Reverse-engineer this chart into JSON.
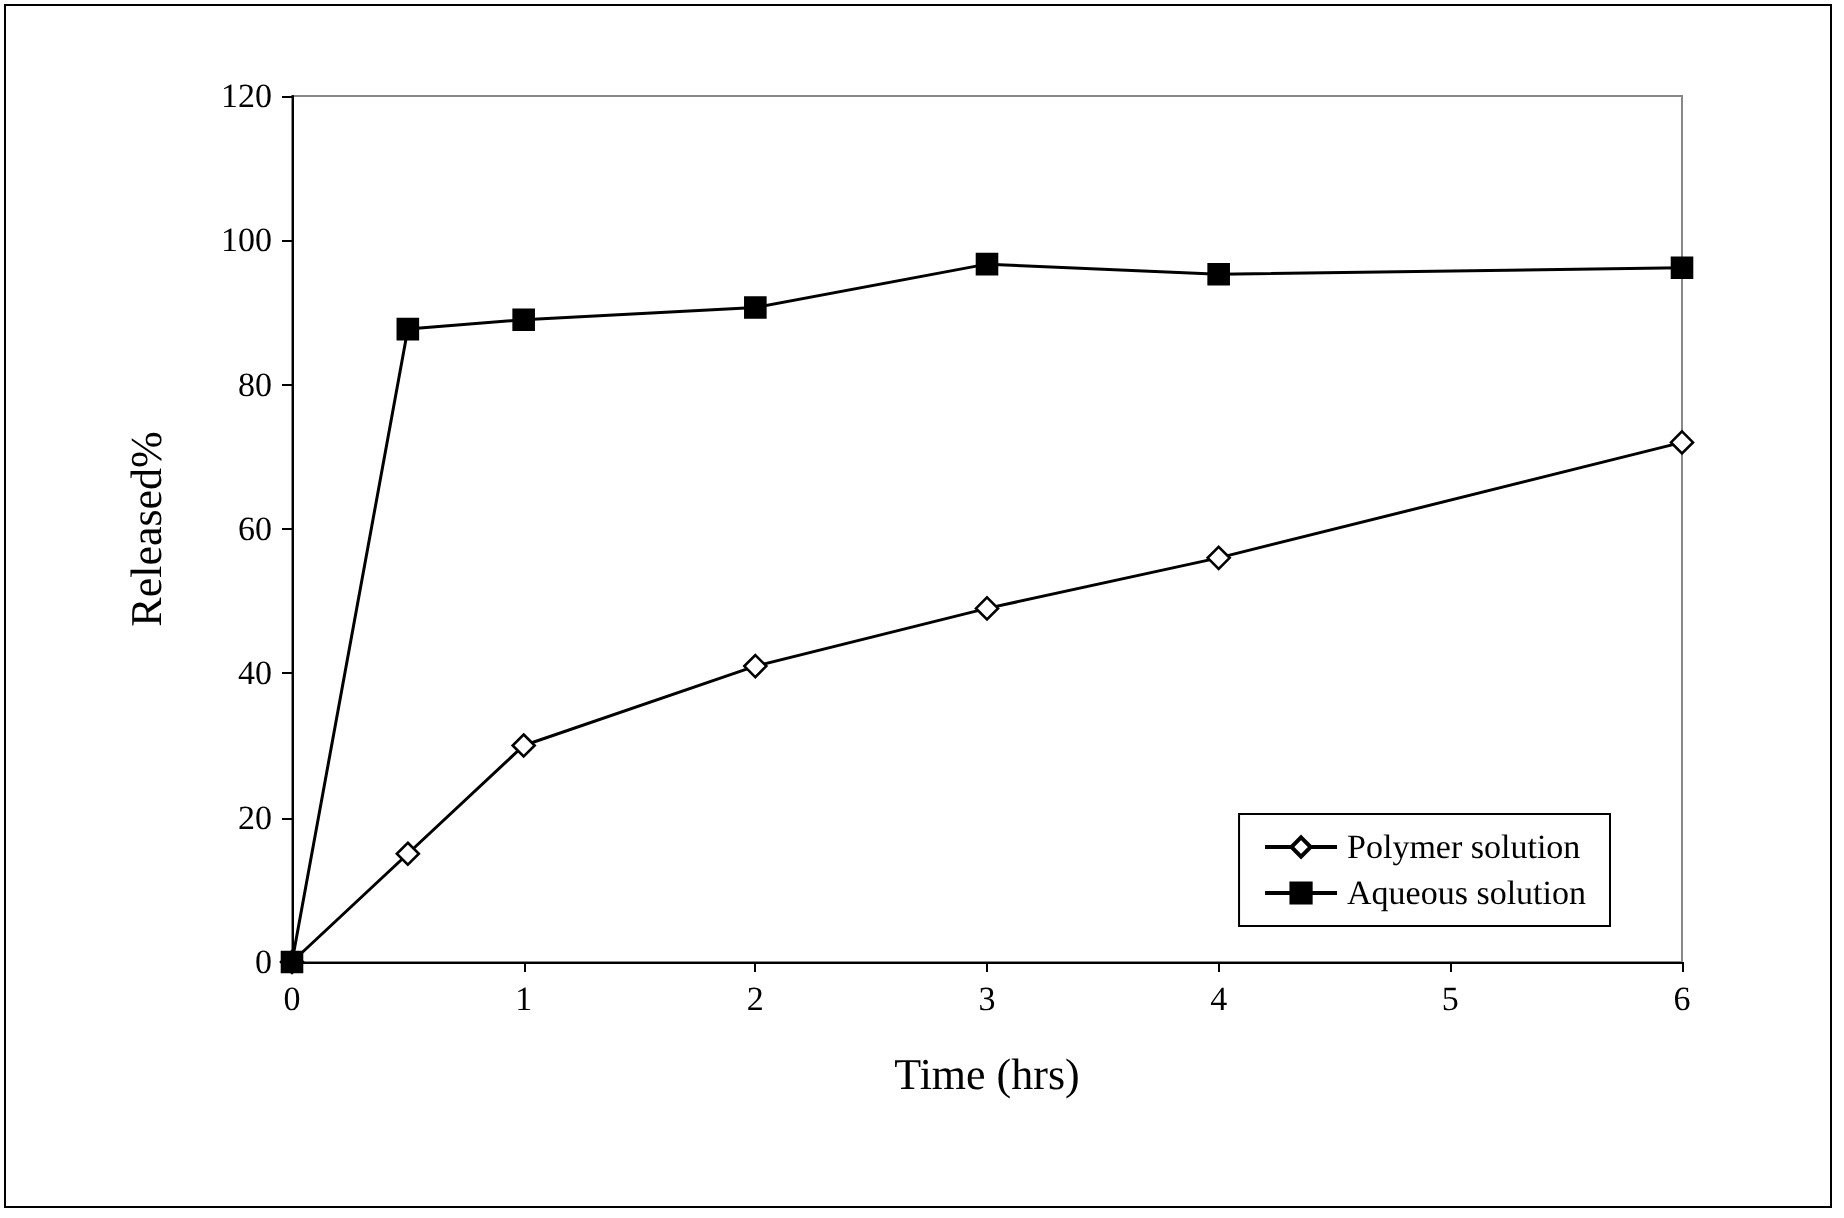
{
  "chart_data": {
    "type": "line",
    "xlabel": "Time (hrs)",
    "ylabel": "Released%",
    "xlim": [
      0,
      6
    ],
    "xticks": [
      0,
      1,
      2,
      3,
      4,
      5,
      6
    ],
    "ylim": [
      0,
      120
    ],
    "yticks": [
      0,
      20,
      40,
      60,
      80,
      100,
      120
    ],
    "grid": false,
    "legend": "bottom right",
    "line_style": "solid",
    "series": [
      {
        "name": "Polymer solution",
        "color": "#000000",
        "marker": "diamond",
        "x": [
          0,
          0.5,
          1,
          2,
          3,
          4,
          6
        ],
        "values": [
          0,
          15,
          30,
          41,
          49,
          56,
          72
        ]
      },
      {
        "name": "Aqueous solution",
        "color": "#000000",
        "marker": "square",
        "x": [
          0,
          0.5,
          1,
          2,
          3,
          4,
          6
        ],
        "values": [
          0,
          87.7,
          89,
          90.7,
          96.7,
          95.3,
          96.2
        ]
      }
    ]
  }
}
